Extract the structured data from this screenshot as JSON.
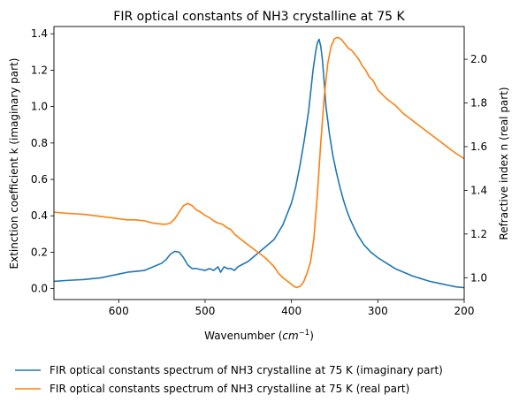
{
  "chart_data": {
    "type": "line",
    "title": "FIR optical constants of NH3 crystalline at 75 K",
    "xlabel": "Wavenumber (cm⁻¹)",
    "xlabel_base": "Wavenumber (",
    "xlabel_unit": "cm",
    "xlabel_exp": "−1",
    "xlabel_close": ")",
    "ylabel_left": "Extinction coefficient k (imaginary part)",
    "ylabel_right": "Refractive index n (real part)",
    "xlim": [
      675,
      200
    ],
    "ylim_left": [
      -0.06,
      1.44
    ],
    "ylim_right": [
      0.9,
      2.15
    ],
    "xticks": [
      600,
      500,
      400,
      300,
      200
    ],
    "yticks_left": [
      0.0,
      0.2,
      0.4,
      0.6,
      0.8,
      1.0,
      1.2,
      1.4
    ],
    "yticks_right": [
      1.0,
      1.2,
      1.4,
      1.6,
      1.8,
      2.0
    ],
    "grid": false,
    "legend_position": "bottom, below plot",
    "series": [
      {
        "name": "FIR optical constants spectrum of NH3 crystalline at 75 K (imaginary part)",
        "color": "#1f77b4",
        "axis": "left",
        "x": [
          675,
          660,
          640,
          620,
          600,
          590,
          570,
          560,
          550,
          545,
          540,
          535,
          530,
          525,
          520,
          515,
          510,
          505,
          500,
          495,
          490,
          485,
          482,
          478,
          474,
          470,
          466,
          462,
          458,
          450,
          440,
          430,
          420,
          410,
          400,
          395,
          390,
          385,
          380,
          375,
          372,
          370,
          368,
          366,
          364,
          362,
          360,
          356,
          352,
          348,
          344,
          340,
          336,
          332,
          328,
          324,
          320,
          316,
          312,
          308,
          304,
          300,
          290,
          280,
          270,
          260,
          250,
          240,
          230,
          220,
          210,
          200
        ],
        "values": [
          0.04,
          0.045,
          0.05,
          0.06,
          0.08,
          0.09,
          0.1,
          0.12,
          0.14,
          0.16,
          0.19,
          0.205,
          0.2,
          0.17,
          0.13,
          0.11,
          0.11,
          0.105,
          0.1,
          0.11,
          0.1,
          0.12,
          0.09,
          0.12,
          0.11,
          0.11,
          0.1,
          0.12,
          0.13,
          0.15,
          0.19,
          0.23,
          0.27,
          0.35,
          0.47,
          0.56,
          0.68,
          0.82,
          0.98,
          1.2,
          1.3,
          1.35,
          1.37,
          1.33,
          1.25,
          1.13,
          1.0,
          0.85,
          0.73,
          0.64,
          0.56,
          0.49,
          0.43,
          0.38,
          0.34,
          0.3,
          0.27,
          0.24,
          0.22,
          0.2,
          0.185,
          0.17,
          0.14,
          0.11,
          0.09,
          0.07,
          0.055,
          0.04,
          0.03,
          0.02,
          0.01,
          0.005
        ]
      },
      {
        "name": "FIR optical constants spectrum of NH3 crystalline at 75 K (real part)",
        "color": "#ff7f0e",
        "axis": "right",
        "x": [
          675,
          660,
          640,
          620,
          600,
          590,
          580,
          570,
          560,
          550,
          545,
          540,
          535,
          530,
          525,
          520,
          515,
          510,
          505,
          500,
          495,
          490,
          485,
          480,
          475,
          470,
          466,
          460,
          455,
          450,
          440,
          430,
          420,
          415,
          410,
          405,
          400,
          397,
          394,
          390,
          386,
          382,
          378,
          374,
          370,
          366,
          362,
          358,
          354,
          350,
          346,
          342,
          338,
          334,
          330,
          326,
          322,
          318,
          314,
          310,
          305,
          300,
          295,
          290,
          280,
          270,
          260,
          250,
          240,
          230,
          220,
          210,
          200
        ],
        "values": [
          1.3,
          1.295,
          1.29,
          1.28,
          1.27,
          1.265,
          1.265,
          1.26,
          1.25,
          1.245,
          1.245,
          1.25,
          1.27,
          1.3,
          1.33,
          1.34,
          1.33,
          1.31,
          1.3,
          1.285,
          1.275,
          1.26,
          1.25,
          1.245,
          1.23,
          1.22,
          1.2,
          1.18,
          1.165,
          1.15,
          1.12,
          1.09,
          1.05,
          1.02,
          1.0,
          0.985,
          0.97,
          0.96,
          0.955,
          0.96,
          0.98,
          1.02,
          1.07,
          1.18,
          1.38,
          1.62,
          1.83,
          1.98,
          2.06,
          2.095,
          2.1,
          2.09,
          2.07,
          2.05,
          2.04,
          2.02,
          2.0,
          1.97,
          1.95,
          1.92,
          1.9,
          1.86,
          1.84,
          1.82,
          1.79,
          1.75,
          1.72,
          1.69,
          1.66,
          1.63,
          1.6,
          1.57,
          1.545
        ]
      }
    ]
  }
}
